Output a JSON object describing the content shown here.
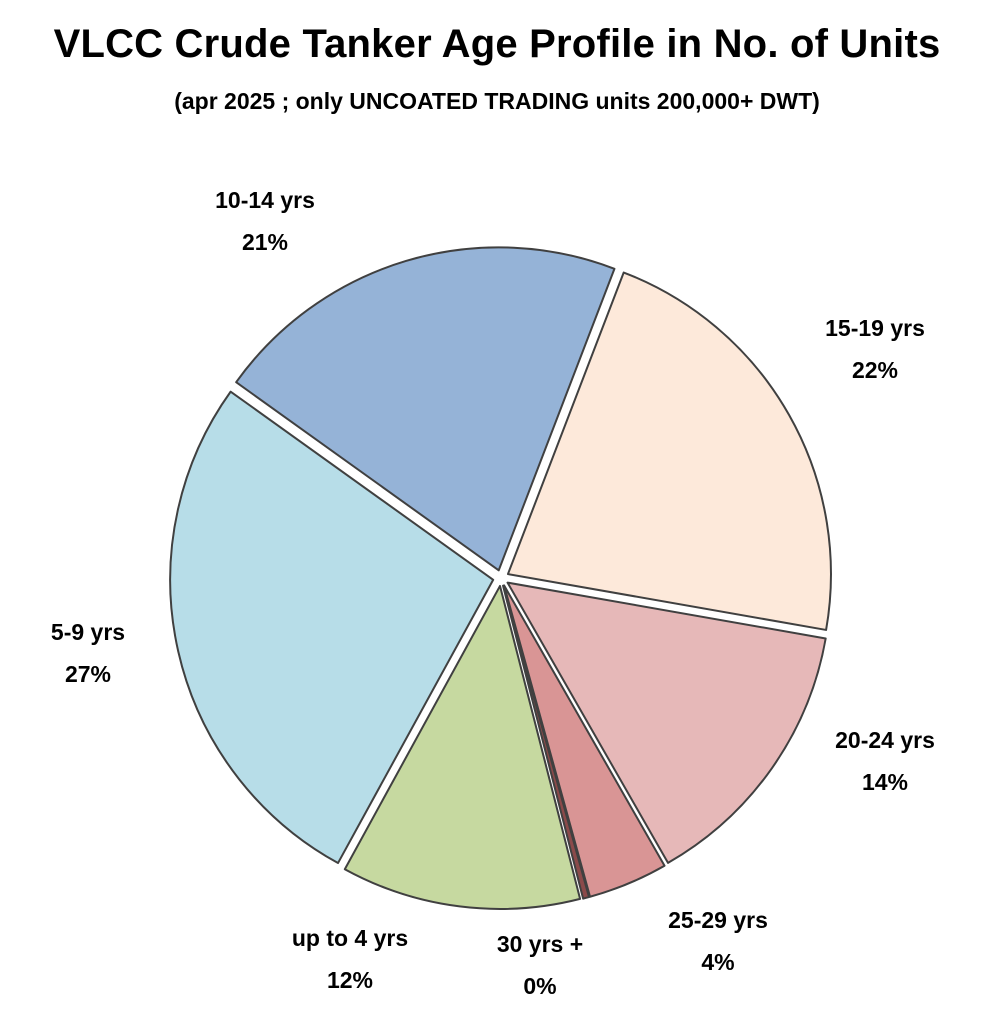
{
  "chart_data": {
    "type": "pie",
    "title": "VLCC Crude Tanker Age Profile in No. of Units",
    "subtitle": "(apr 2025 ; only UNCOATED TRADING units 200,000+ DWT)",
    "slices": [
      {
        "label": "15-19 yrs",
        "value": 22,
        "value_label": "22%",
        "color": "#FDE9DA"
      },
      {
        "label": "20-24 yrs",
        "value": 14,
        "value_label": "14%",
        "color": "#E6B8B8"
      },
      {
        "label": "25-29 yrs",
        "value": 4,
        "value_label": "4%",
        "color": "#D99595"
      },
      {
        "label": "30 yrs +",
        "value": 0.3,
        "value_label": "0%",
        "color": "#8B4A4A"
      },
      {
        "label": "up to 4 yrs",
        "value": 12,
        "value_label": "12%",
        "color": "#C6D9A0"
      },
      {
        "label": "5-9 yrs",
        "value": 27,
        "value_label": "27%",
        "color": "#B7DDE8"
      },
      {
        "label": "10-14 yrs",
        "value": 21,
        "value_label": "21%",
        "color": "#95B3D7"
      }
    ],
    "start_angle_deg": 21,
    "direction": "clockwise",
    "slice_border_color": "#404040",
    "exploded": true,
    "legend": "none",
    "data_labels": "category and percent, outside"
  }
}
